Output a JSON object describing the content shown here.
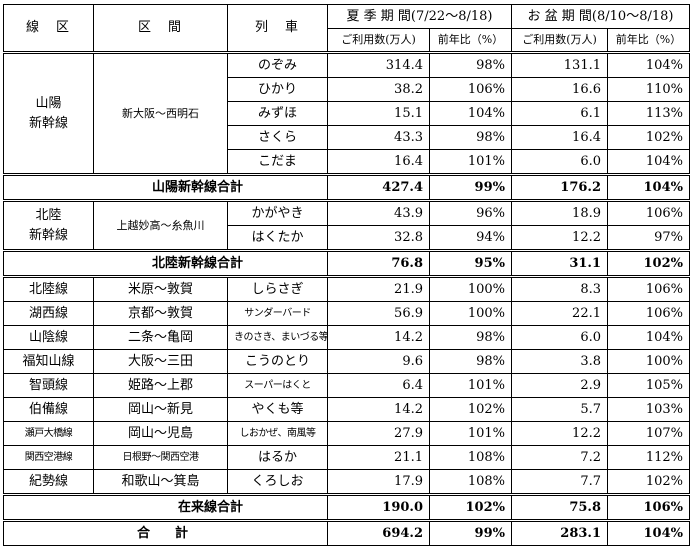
{
  "headers": {
    "line": "線　区",
    "section": "区　間",
    "train": "列　車",
    "summer": "夏 季 期 間(7/22～8/18)",
    "obon": "お 盆 期 間(8/10～8/18)",
    "usage": "ご利用数(万人)",
    "yoy": "前年比（%）"
  },
  "groups": [
    {
      "line": "山陽\n新幹線",
      "section": "新大阪～西明石",
      "trains": [
        {
          "name": "のぞみ",
          "s_use": "314.4",
          "s_yoy": "98%",
          "o_use": "131.1",
          "o_yoy": "104%"
        },
        {
          "name": "ひかり",
          "s_use": "38.2",
          "s_yoy": "106%",
          "o_use": "16.6",
          "o_yoy": "110%"
        },
        {
          "name": "みずほ",
          "s_use": "15.1",
          "s_yoy": "104%",
          "o_use": "6.1",
          "o_yoy": "113%"
        },
        {
          "name": "さくら",
          "s_use": "43.3",
          "s_yoy": "98%",
          "o_use": "16.4",
          "o_yoy": "102%"
        },
        {
          "name": "こだま",
          "s_use": "16.4",
          "s_yoy": "101%",
          "o_use": "6.0",
          "o_yoy": "104%"
        }
      ],
      "total": {
        "label": "山陽新幹線合計",
        "s_use": "427.4",
        "s_yoy": "99%",
        "o_use": "176.2",
        "o_yoy": "104%"
      }
    },
    {
      "line": "北陸\n新幹線",
      "section": "上越妙高～糸魚川",
      "trains": [
        {
          "name": "かがやき",
          "s_use": "43.9",
          "s_yoy": "96%",
          "o_use": "18.9",
          "o_yoy": "106%"
        },
        {
          "name": "はくたか",
          "s_use": "32.8",
          "s_yoy": "94%",
          "o_use": "12.2",
          "o_yoy": "97%"
        }
      ],
      "total": {
        "label": "北陸新幹線合計",
        "s_use": "76.8",
        "s_yoy": "95%",
        "o_use": "31.1",
        "o_yoy": "102%"
      }
    }
  ],
  "conventional": [
    {
      "line": "北陸線",
      "section": "米原～敦賀",
      "train": "しらさぎ",
      "s_use": "21.9",
      "s_yoy": "100%",
      "o_use": "8.3",
      "o_yoy": "106%"
    },
    {
      "line": "湖西線",
      "section": "京都～敦賀",
      "train": "サンダーバード",
      "s_use": "56.9",
      "s_yoy": "100%",
      "o_use": "22.1",
      "o_yoy": "106%"
    },
    {
      "line": "山陰線",
      "section": "二条～亀岡",
      "train": "きのさき、まいづる等",
      "s_use": "14.2",
      "s_yoy": "98%",
      "o_use": "6.0",
      "o_yoy": "104%"
    },
    {
      "line": "福知山線",
      "section": "大阪～三田",
      "train": "こうのとり",
      "s_use": "9.6",
      "s_yoy": "98%",
      "o_use": "3.8",
      "o_yoy": "100%"
    },
    {
      "line": "智頭線",
      "section": "姫路～上郡",
      "train": "スーパーはくと",
      "s_use": "6.4",
      "s_yoy": "101%",
      "o_use": "2.9",
      "o_yoy": "105%"
    },
    {
      "line": "伯備線",
      "section": "岡山～新見",
      "train": "やくも等",
      "s_use": "14.2",
      "s_yoy": "102%",
      "o_use": "5.7",
      "o_yoy": "103%"
    },
    {
      "line": "瀬戸大橋線",
      "section": "岡山～児島",
      "train": "しおかぜ、南風等",
      "s_use": "27.9",
      "s_yoy": "101%",
      "o_use": "12.2",
      "o_yoy": "107%"
    },
    {
      "line": "関西空港線",
      "section": "日根野～関西空港",
      "train": "はるか",
      "s_use": "21.1",
      "s_yoy": "108%",
      "o_use": "7.2",
      "o_yoy": "112%"
    },
    {
      "line": "紀勢線",
      "section": "和歌山～箕島",
      "train": "くろしお",
      "s_use": "17.9",
      "s_yoy": "108%",
      "o_use": "7.7",
      "o_yoy": "102%"
    }
  ],
  "conventional_total": {
    "label": "在来線合計",
    "s_use": "190.0",
    "s_yoy": "102%",
    "o_use": "75.8",
    "o_yoy": "106%"
  },
  "grand_total": {
    "label": "合　計",
    "s_use": "694.2",
    "s_yoy": "99%",
    "o_use": "283.1",
    "o_yoy": "104%"
  }
}
